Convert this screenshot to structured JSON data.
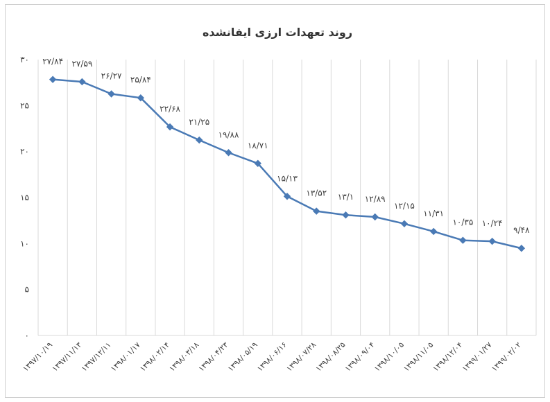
{
  "chart_data": {
    "type": "line",
    "title": "روند تعهدات ارزی ایفانشده",
    "xlabel": "",
    "ylabel": "",
    "ylim": [
      0,
      30
    ],
    "yticks": [
      0,
      5,
      10,
      15,
      20,
      25,
      30
    ],
    "ytick_labels": [
      "۰",
      "۵",
      "۱۰",
      "۱۵",
      "۲۰",
      "۲۵",
      "۳۰"
    ],
    "grid": "vertical",
    "legend": "none",
    "line_color": "#4a7ab5",
    "categories": [
      "۱۳۹۷/۱۰/۱۹",
      "۱۳۹۷/۱۱/۱۳",
      "۱۳۹۷/۱۲/۱۱",
      "۱۳۹۸/۰۱/۱۷",
      "۱۳۹۸/۰۲/۱۴",
      "۱۳۹۸/۰۳/۱۸",
      "۱۳۹۸/۰۴/۲۳",
      "۱۳۹۸/۰۵/۱۹",
      "۱۳۹۸/۰۶/۱۶",
      "۱۳۹۸/۰۷/۲۸",
      "۱۳۹۸/۰۸/۲۵",
      "۱۳۹۸/۰۹/۰۴",
      "۱۳۹۸/۱۰/۰۵",
      "۱۳۹۸/۱۱/۰۵",
      "۱۳۹۸/۱۲/۰۴",
      "۱۳۹۹/۰۱/۲۷",
      "۱۳۹۹/۰۲/۰۲"
    ],
    "values": [
      27.84,
      27.59,
      26.27,
      25.84,
      22.68,
      21.25,
      19.88,
      18.71,
      15.13,
      13.52,
      13.1,
      12.89,
      12.15,
      11.31,
      10.35,
      10.24,
      9.48
    ],
    "data_labels": [
      "۲۷/۸۴",
      "۲۷/۵۹",
      "۲۶/۲۷",
      "۲۵/۸۴",
      "۲۲/۶۸",
      "۲۱/۲۵",
      "۱۹/۸۸",
      "۱۸/۷۱",
      "۱۵/۱۳",
      "۱۳/۵۲",
      "۱۳/۱",
      "۱۲/۸۹",
      "۱۲/۱۵",
      "۱۱/۳۱",
      "۱۰/۳۵",
      "۱۰/۲۴",
      "۹/۴۸"
    ]
  }
}
